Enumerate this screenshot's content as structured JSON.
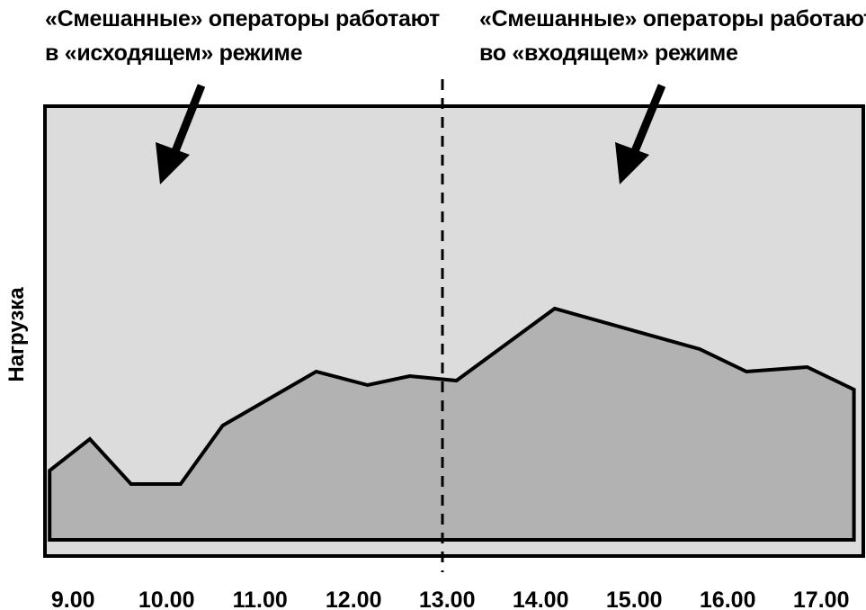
{
  "annotations": {
    "left": [
      "«Смешанные» операторы работают",
      "в «исходящем» режиме"
    ],
    "right": [
      "«Смешанные» операторы работают",
      "во «входящем» режиме"
    ]
  },
  "chart_data": {
    "type": "area",
    "ylabel": "Нагрузка",
    "xlabel": "",
    "title": "",
    "x_ticks": [
      "9.00",
      "10.00",
      "11.00",
      "12.00",
      "13.00",
      "14.00",
      "15.00",
      "16.00",
      "17.00"
    ],
    "xlim": [
      8.7,
      17.45
    ],
    "ylim": [
      0,
      100
    ],
    "grid": false,
    "divider_x": 12.95,
    "series": [
      {
        "x": [
          8.75,
          9.18,
          9.62,
          10.15,
          10.6,
          11.6,
          12.15,
          12.6,
          13.1,
          14.15,
          15.7,
          16.2,
          16.85,
          17.35
        ],
        "values": [
          19,
          26,
          16,
          16,
          29,
          41,
          38,
          40,
          39,
          55,
          46,
          41,
          42,
          37
        ]
      }
    ],
    "colors": {
      "plot_background": "#dcdcdc",
      "area_fill": "#b2b2b2",
      "line": "#000000"
    }
  }
}
